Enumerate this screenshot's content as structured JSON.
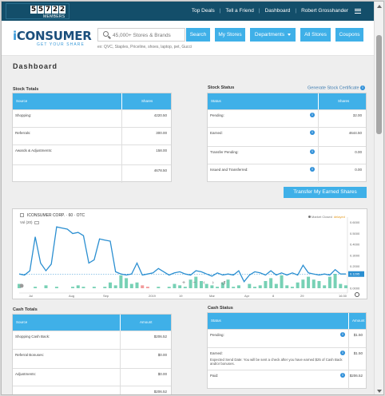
{
  "topbar": {
    "counter_digits": [
      "5",
      "5",
      "7",
      "2",
      "2"
    ],
    "counter_label": "MEMBERS",
    "links": [
      "Top Deals",
      "Tell a Friend",
      "Dashboard",
      "Robert Grosshander"
    ]
  },
  "header": {
    "logo_prefix": "i",
    "logo_main": "CONSUMER",
    "logo_tagline": "GET YOUR SHARE",
    "search_placeholder": "45,000+ Stores & Brands",
    "search_hint": "ex: QVC, Staples, Priceline, shoes, laptop, pet, Gucci",
    "buttons": {
      "search": "Search",
      "my_stores": "My Stores",
      "departments": "Departments",
      "all_stores": "All Stores",
      "coupons": "Coupons"
    }
  },
  "page_title": "Dashboard",
  "stock_totals": {
    "title": "Stock Totals",
    "col_source": "Source",
    "col_shares": "Shares",
    "rows": [
      {
        "label": "Shopping:",
        "value": "4220.50"
      },
      {
        "label": "Referrals:",
        "value": "300.00"
      },
      {
        "label": "Awards & Adjustments:",
        "value": "158.00"
      },
      {
        "label": "",
        "value": "4678.50"
      }
    ]
  },
  "stock_status": {
    "title": "Stock Status",
    "link": "Generate Stock Certificate",
    "col_status": "Status",
    "col_shares": "Shares",
    "rows": [
      {
        "label": "Pending:",
        "value": "32.00"
      },
      {
        "label": "Earned:",
        "value": "4644.50"
      },
      {
        "label": "Transfer Pending:",
        "value": "0.00"
      },
      {
        "label": "Issued and Transferred:",
        "value": "0.00"
      }
    ],
    "transfer_button": "Transfer My Earned Shares"
  },
  "chart_data": {
    "type": "line",
    "title": "ICONSUMER CORP. · 60 · OTC",
    "volume_label": "Vol (20)",
    "status_text": "Market Closed",
    "status_delayed": "delayed",
    "x_ticks": [
      "Jul",
      "Aug",
      "Sep",
      "2019",
      "19",
      "Mar",
      "Apr",
      "8",
      "29",
      "16:30"
    ],
    "y_ticks": [
      "0.6000",
      "0.5000",
      "0.4000",
      "0.3000",
      "0.2000",
      "0.1295",
      "0.0000"
    ],
    "ylim": [
      0,
      0.62
    ],
    "last_price": "0.1295",
    "prices": [
      0.13,
      0.12,
      0.16,
      0.47,
      0.23,
      0.16,
      0.22,
      0.56,
      0.55,
      0.54,
      0.5,
      0.51,
      0.48,
      0.23,
      0.26,
      0.45,
      0.44,
      0.43,
      0.15,
      0.13,
      0.12,
      0.13,
      0.23,
      0.12,
      0.13,
      0.14,
      0.18,
      0.15,
      0.12,
      0.14,
      0.15,
      0.13,
      0.12,
      0.16,
      0.15,
      0.13,
      0.11,
      0.14,
      0.12,
      0.13,
      0.12,
      0.16,
      0.06,
      0.12,
      0.15,
      0.14,
      0.12,
      0.16,
      0.12,
      0.14,
      0.12,
      0.14,
      0.12,
      0.21,
      0.14,
      0.13,
      0.12,
      0.13,
      0.12,
      0.17,
      0.13,
      0.13
    ],
    "volumes": [
      0.3,
      0,
      0,
      0.1,
      0,
      0.2,
      0,
      0.1,
      0,
      0,
      0.1,
      0.2,
      0.1,
      0,
      0.1,
      0,
      0.1,
      0.4,
      0.2,
      0.9,
      0.7,
      0.3,
      0.4,
      0.2,
      0.1,
      0,
      0.1,
      0,
      0.1,
      0.3,
      0.2,
      0.1,
      0.6,
      0.8,
      0.5,
      0.3,
      0.2,
      0.1,
      0.4,
      0.6,
      0.1,
      0.2,
      0,
      0.3,
      0.1,
      0.2,
      0.5,
      0.7,
      0.3,
      0.9,
      0.2,
      0.1,
      0.4,
      0.6,
      0.8,
      0.6,
      0.5,
      0.2,
      0.8,
      1.0,
      0.3,
      0.2
    ],
    "volume_colors": {
      "up": "#5fc9a8",
      "down": "#f08a8a"
    },
    "line_color": "#2b8fd1",
    "zoom_controls": [
      "+",
      "−",
      "‹",
      "›",
      "↺"
    ]
  },
  "cash_totals": {
    "title": "Cash Totals",
    "col_source": "Source",
    "col_amount": "Amount",
    "rows": [
      {
        "label": "Shopping Cash Back:",
        "value": "$206.52"
      },
      {
        "label": "Referral Bonuses:",
        "value": "$0.00"
      },
      {
        "label": "Adjustments:",
        "value": "$0.00"
      },
      {
        "label": "",
        "value": "$206.52"
      }
    ]
  },
  "cash_status": {
    "title": "Cash Status",
    "col_status": "Status",
    "col_amount": "Amount",
    "rows": [
      {
        "label": "Pending:",
        "value": "$1.50"
      },
      {
        "label": "Earned:",
        "value": "$1.50"
      },
      {
        "label": "Paid:",
        "value": "$206.52"
      }
    ],
    "earned_note": "Expected Send Date: You will be sent a check after you have earned $25 of Cash Back and/or bonuses."
  }
}
